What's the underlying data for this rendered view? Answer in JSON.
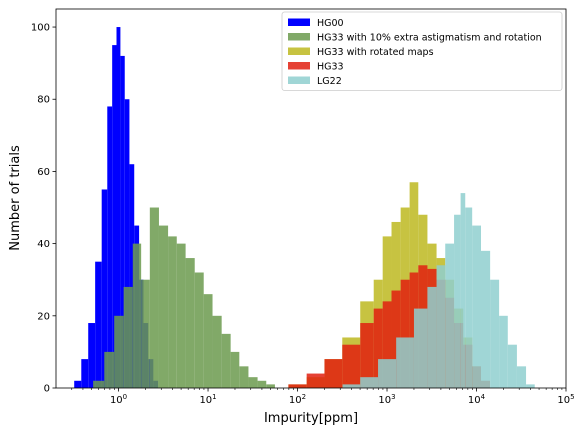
{
  "chart_data": {
    "type": "histogram",
    "xlabel": "Impurity[ppm]",
    "ylabel": "Number of trials",
    "xscale": "log",
    "xlim": [
      0.2,
      100000
    ],
    "ylim": [
      0,
      105
    ],
    "x_ticks": [
      {
        "value": 1,
        "base": "10",
        "exp": "0"
      },
      {
        "value": 10,
        "base": "10",
        "exp": "1"
      },
      {
        "value": 100,
        "base": "10",
        "exp": "2"
      },
      {
        "value": 1000,
        "base": "10",
        "exp": "3"
      },
      {
        "value": 10000,
        "base": "10",
        "exp": "4"
      },
      {
        "value": 100000,
        "base": "10",
        "exp": "5"
      }
    ],
    "y_ticks": [
      "0",
      "20",
      "40",
      "60",
      "80",
      "100"
    ],
    "y_tick_values": [
      0,
      20,
      40,
      60,
      80,
      100
    ],
    "legend_position": "top-right",
    "series": [
      {
        "name": "HG00",
        "color": "#0000ff",
        "opacity": 1.0,
        "x": [
          0.35,
          0.42,
          0.5,
          0.6,
          0.7,
          0.8,
          0.9,
          1.0,
          1.1,
          1.25,
          1.4,
          1.6,
          1.8,
          2.0,
          2.3,
          2.6
        ],
        "y": [
          2,
          8,
          18,
          35,
          55,
          78,
          95,
          100,
          92,
          80,
          62,
          45,
          30,
          18,
          8,
          2
        ]
      },
      {
        "name": "HG33 with 10% extra astigmatism and rotation",
        "color": "#6b9a4e",
        "opacity": 0.85,
        "x": [
          0.6,
          0.8,
          1.0,
          1.3,
          1.6,
          2.0,
          2.5,
          3.2,
          4.0,
          5.0,
          6.3,
          8.0,
          10,
          12.6,
          16,
          20,
          25,
          32,
          40,
          50
        ],
        "y": [
          2,
          10,
          20,
          28,
          40,
          30,
          50,
          45,
          42,
          40,
          36,
          32,
          26,
          20,
          15,
          10,
          6,
          3,
          2,
          1
        ]
      },
      {
        "name": "HG33 with rotated maps",
        "color": "#bdb820",
        "opacity": 0.85,
        "x": [
          100,
          160,
          250,
          400,
          630,
          800,
          1000,
          1260,
          1600,
          2000,
          2500,
          3200,
          4000,
          5000,
          6300,
          8000,
          10000,
          12600
        ],
        "y": [
          1,
          3,
          8,
          14,
          24,
          30,
          42,
          46,
          50,
          57,
          48,
          40,
          36,
          30,
          22,
          14,
          6,
          2
        ]
      },
      {
        "name": "HG33",
        "color": "#e02010",
        "opacity": 0.85,
        "x": [
          100,
          160,
          250,
          400,
          630,
          800,
          1000,
          1260,
          1600,
          2000,
          2500,
          3200,
          4000,
          5000,
          6300,
          8000,
          10000,
          12600
        ],
        "y": [
          1,
          4,
          8,
          12,
          18,
          22,
          24,
          27,
          30,
          32,
          34,
          33,
          30,
          25,
          18,
          12,
          6,
          2
        ]
      },
      {
        "name": "LG22",
        "color": "#8fcfcf",
        "opacity": 0.85,
        "x": [
          400,
          630,
          1000,
          1600,
          2500,
          3200,
          4000,
          5000,
          6300,
          7000,
          8000,
          10000,
          12600,
          16000,
          20000,
          25000,
          32000,
          40000
        ],
        "y": [
          1,
          3,
          8,
          14,
          22,
          28,
          34,
          40,
          48,
          54,
          50,
          45,
          38,
          30,
          20,
          12,
          6,
          1
        ]
      }
    ]
  }
}
